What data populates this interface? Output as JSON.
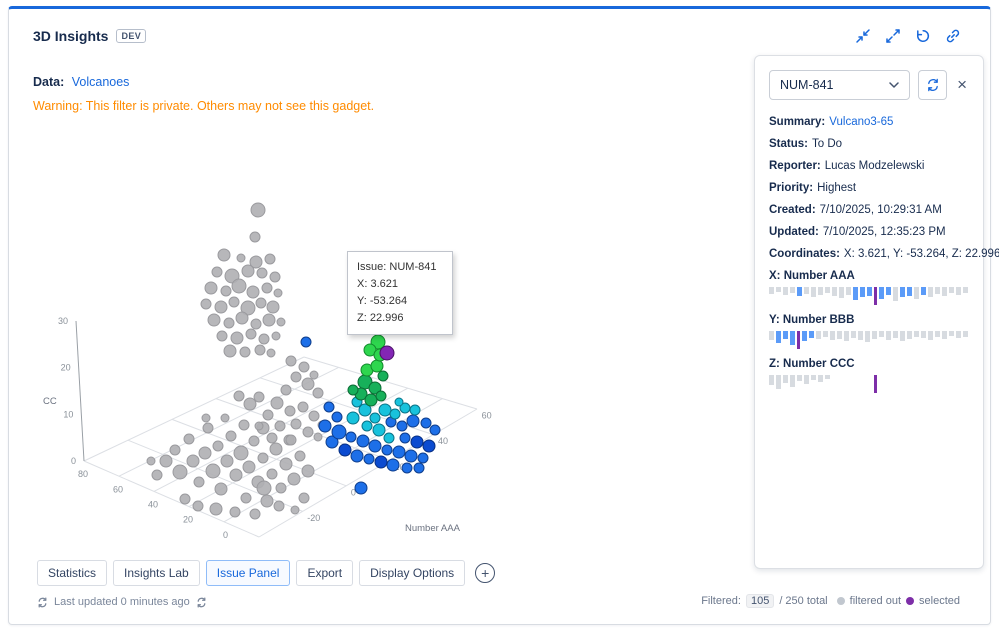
{
  "header": {
    "title": "3D Insights",
    "badge": "DEV",
    "icons": [
      "collapse",
      "expand",
      "undo",
      "link"
    ]
  },
  "info": {
    "data_label": "Data:",
    "data_value": "Volcanoes",
    "warning": "Warning: This filter is private. Others may not see this gadget."
  },
  "plot": {
    "tooltip": {
      "lines": [
        "Issue: NUM-841",
        "X: 3.621",
        "Y: -53.264",
        "Z: 22.996"
      ]
    },
    "axis": {
      "z_label": "CC",
      "x_label": "Number AAA",
      "z_ticks": [
        "30",
        "20",
        "10",
        "0"
      ],
      "left_ticks": [
        "80",
        "60",
        "40",
        "20",
        "0"
      ],
      "right_ticks": [
        "60",
        "40",
        "20",
        "0",
        "-20"
      ]
    },
    "palette": [
      {
        "fill": "#AFAFB2",
        "stroke": "#9A9A9E",
        "opacity": 0.9
      },
      {
        "fill": "#1D6FE8",
        "stroke": "#0F3E8C",
        "opacity": 1
      },
      {
        "fill": "#0B4BD0",
        "stroke": "#082F80",
        "opacity": 1
      },
      {
        "fill": "#18C2DC",
        "stroke": "#0B7286",
        "opacity": 1
      },
      {
        "fill": "#17B05A",
        "stroke": "#0B6B34",
        "opacity": 1
      },
      {
        "fill": "#2ED64E",
        "stroke": "#128A2C",
        "opacity": 1
      },
      {
        "fill": "#8326B5",
        "stroke": "#4A1266",
        "opacity": 1
      },
      {
        "fill": "#DCE66C",
        "stroke": "#70741F",
        "opacity": 1
      }
    ],
    "points": [
      [
        249,
        201,
        7,
        0
      ],
      [
        246,
        228,
        5,
        0
      ],
      [
        215,
        246,
        6,
        0
      ],
      [
        232,
        249,
        4,
        0
      ],
      [
        247,
        253,
        6,
        0
      ],
      [
        261,
        250,
        5,
        0
      ],
      [
        208,
        263,
        5,
        0
      ],
      [
        223,
        267,
        7,
        0
      ],
      [
        239,
        262,
        6,
        0
      ],
      [
        253,
        264,
        5,
        0
      ],
      [
        266,
        268,
        5,
        0
      ],
      [
        202,
        279,
        6,
        0
      ],
      [
        217,
        282,
        5,
        0
      ],
      [
        230,
        277,
        7,
        0
      ],
      [
        244,
        283,
        6,
        0
      ],
      [
        258,
        279,
        5,
        0
      ],
      [
        269,
        284,
        4,
        0
      ],
      [
        197,
        295,
        5,
        0
      ],
      [
        212,
        298,
        6,
        0
      ],
      [
        225,
        293,
        5,
        0
      ],
      [
        239,
        299,
        7,
        0
      ],
      [
        252,
        294,
        5,
        0
      ],
      [
        264,
        298,
        6,
        0
      ],
      [
        205,
        311,
        6,
        0
      ],
      [
        220,
        314,
        5,
        0
      ],
      [
        233,
        309,
        6,
        0
      ],
      [
        247,
        315,
        5,
        0
      ],
      [
        260,
        311,
        6,
        0
      ],
      [
        272,
        313,
        4,
        0
      ],
      [
        213,
        327,
        5,
        0
      ],
      [
        228,
        329,
        6,
        0
      ],
      [
        242,
        325,
        5,
        0
      ],
      [
        255,
        330,
        5,
        0
      ],
      [
        267,
        327,
        4,
        0
      ],
      [
        221,
        342,
        6,
        0
      ],
      [
        236,
        343,
        5,
        0
      ],
      [
        251,
        341,
        5,
        0
      ],
      [
        262,
        344,
        4,
        0
      ],
      [
        282,
        352,
        5,
        0
      ],
      [
        295,
        358,
        5,
        0
      ],
      [
        305,
        366,
        4,
        0
      ],
      [
        287,
        368,
        5,
        0
      ],
      [
        299,
        375,
        6,
        0
      ],
      [
        309,
        384,
        5,
        0
      ],
      [
        277,
        381,
        5,
        0
      ],
      [
        268,
        394,
        6,
        0
      ],
      [
        281,
        402,
        5,
        0
      ],
      [
        294,
        398,
        5,
        0
      ],
      [
        305,
        407,
        5,
        0
      ],
      [
        313,
        416,
        4,
        0
      ],
      [
        259,
        406,
        5,
        0
      ],
      [
        254,
        419,
        6,
        0
      ],
      [
        271,
        417,
        5,
        0
      ],
      [
        287,
        415,
        5,
        0
      ],
      [
        299,
        423,
        5,
        0
      ],
      [
        309,
        428,
        4,
        0
      ],
      [
        241,
        395,
        6,
        0
      ],
      [
        250,
        388,
        5,
        0
      ],
      [
        230,
        387,
        5,
        0
      ],
      [
        263,
        429,
        5,
        0
      ],
      [
        280,
        431,
        5,
        0
      ],
      [
        142,
        452,
        4,
        0
      ],
      [
        148,
        466,
        5,
        0
      ],
      [
        157,
        452,
        6,
        0
      ],
      [
        166,
        441,
        5,
        0
      ],
      [
        171,
        463,
        7,
        0
      ],
      [
        180,
        430,
        5,
        0
      ],
      [
        184,
        452,
        6,
        0
      ],
      [
        190,
        473,
        5,
        0
      ],
      [
        196,
        444,
        6,
        0
      ],
      [
        199,
        419,
        5,
        0
      ],
      [
        204,
        462,
        7,
        0
      ],
      [
        209,
        437,
        5,
        0
      ],
      [
        212,
        480,
        6,
        0
      ],
      [
        218,
        452,
        6,
        0
      ],
      [
        222,
        427,
        5,
        0
      ],
      [
        227,
        466,
        6,
        0
      ],
      [
        232,
        444,
        7,
        0
      ],
      [
        237,
        489,
        5,
        0
      ],
      [
        240,
        458,
        6,
        0
      ],
      [
        245,
        432,
        5,
        0
      ],
      [
        249,
        473,
        6,
        0
      ],
      [
        254,
        449,
        5,
        0
      ],
      [
        258,
        492,
        6,
        0
      ],
      [
        263,
        465,
        5,
        0
      ],
      [
        267,
        440,
        6,
        0
      ],
      [
        272,
        479,
        5,
        0
      ],
      [
        277,
        455,
        6,
        0
      ],
      [
        282,
        431,
        5,
        0
      ],
      [
        285,
        470,
        6,
        0
      ],
      [
        291,
        447,
        5,
        0
      ],
      [
        295,
        489,
        5,
        0
      ],
      [
        299,
        462,
        6,
        0
      ],
      [
        176,
        490,
        5,
        0
      ],
      [
        189,
        497,
        5,
        0
      ],
      [
        207,
        500,
        6,
        0
      ],
      [
        226,
        503,
        5,
        0
      ],
      [
        246,
        505,
        5,
        0
      ],
      [
        255,
        479,
        7,
        0
      ],
      [
        270,
        497,
        5,
        0
      ],
      [
        286,
        501,
        4,
        0
      ],
      [
        216,
        409,
        4,
        0
      ],
      [
        197,
        409,
        4,
        0
      ],
      [
        235,
        416,
        5,
        0
      ],
      [
        250,
        417,
        4,
        0
      ],
      [
        316,
        417,
        6,
        1
      ],
      [
        323,
        433,
        6,
        1
      ],
      [
        330,
        423,
        7,
        1
      ],
      [
        342,
        428,
        5,
        1
      ],
      [
        348,
        447,
        6,
        1
      ],
      [
        354,
        432,
        6,
        1
      ],
      [
        360,
        450,
        5,
        1
      ],
      [
        366,
        437,
        6,
        1
      ],
      [
        378,
        441,
        5,
        1
      ],
      [
        384,
        456,
        6,
        1
      ],
      [
        390,
        443,
        6,
        1
      ],
      [
        396,
        429,
        5,
        1
      ],
      [
        402,
        447,
        6,
        1
      ],
      [
        414,
        449,
        5,
        1
      ],
      [
        426,
        421,
        5,
        1
      ],
      [
        417,
        414,
        5,
        1
      ],
      [
        404,
        412,
        6,
        1
      ],
      [
        393,
        417,
        5,
        1
      ],
      [
        382,
        413,
        5,
        1
      ],
      [
        352,
        479,
        6,
        1
      ],
      [
        398,
        459,
        5,
        1
      ],
      [
        410,
        459,
        5,
        1
      ],
      [
        328,
        408,
        5,
        1
      ],
      [
        320,
        398,
        5,
        1
      ],
      [
        297,
        333,
        5,
        1
      ],
      [
        336,
        441,
        6,
        2
      ],
      [
        372,
        453,
        6,
        2
      ],
      [
        408,
        433,
        6,
        2
      ],
      [
        420,
        437,
        6,
        2
      ],
      [
        344,
        409,
        6,
        3
      ],
      [
        356,
        401,
        6,
        3
      ],
      [
        366,
        409,
        5,
        3
      ],
      [
        376,
        401,
        6,
        3
      ],
      [
        386,
        405,
        5,
        3
      ],
      [
        396,
        399,
        5,
        3
      ],
      [
        358,
        417,
        5,
        3
      ],
      [
        370,
        421,
        6,
        3
      ],
      [
        348,
        393,
        5,
        3
      ],
      [
        380,
        429,
        5,
        3
      ],
      [
        406,
        401,
        5,
        3
      ],
      [
        390,
        393,
        4,
        3
      ],
      [
        356,
        373,
        7,
        4
      ],
      [
        366,
        379,
        6,
        4
      ],
      [
        352,
        385,
        6,
        4
      ],
      [
        362,
        391,
        6,
        4
      ],
      [
        372,
        387,
        5,
        4
      ],
      [
        344,
        381,
        5,
        4
      ],
      [
        374,
        367,
        5,
        4
      ],
      [
        358,
        361,
        6,
        5
      ],
      [
        368,
        357,
        6,
        5
      ],
      [
        369,
        333,
        7,
        5
      ],
      [
        361,
        341,
        6,
        5
      ],
      [
        371,
        346,
        6,
        5
      ],
      [
        378,
        344,
        7,
        6
      ],
      [
        366,
        317,
        8,
        7
      ]
    ]
  },
  "tabs": {
    "items": [
      {
        "label": "Statistics",
        "active": false
      },
      {
        "label": "Insights Lab",
        "active": false
      },
      {
        "label": "Issue Panel",
        "active": true
      },
      {
        "label": "Export",
        "active": false
      },
      {
        "label": "Display Options",
        "active": false
      }
    ],
    "add_label": "+"
  },
  "footer": {
    "last_updated": "Last updated 0 minutes ago",
    "filtered_label": "Filtered:",
    "filtered_count": "105",
    "total_label": "/ 250 total",
    "legend": [
      {
        "label": "filtered out",
        "color": "#C1C7CF"
      },
      {
        "label": "selected",
        "color": "#7D2EA8"
      }
    ]
  },
  "panel": {
    "select_value": "NUM-841",
    "close_label": "×",
    "fields": [
      {
        "label": "Summary:",
        "value": "Vulcano3-65",
        "link": true
      },
      {
        "label": "Status:",
        "value": "To Do",
        "link": false
      },
      {
        "label": "Reporter:",
        "value": "Lucas Modzelewski",
        "link": false
      },
      {
        "label": "Priority:",
        "value": "Highest",
        "link": false
      },
      {
        "label": "Created:",
        "value": "7/10/2025, 10:29:31 AM",
        "link": false
      },
      {
        "label": "Updated:",
        "value": "7/10/2025, 12:35:23 PM",
        "link": false
      },
      {
        "label": "Coordinates:",
        "value": "X: 3.621, Y: -53.264, Z: 22.996",
        "link": false
      }
    ],
    "histograms": [
      {
        "label": "X: Number AAA",
        "bars": [
          [
            7,
            "g"
          ],
          [
            5,
            "g"
          ],
          [
            8,
            "g"
          ],
          [
            6,
            "g"
          ],
          [
            9,
            "b"
          ],
          [
            7,
            "g"
          ],
          [
            10,
            "g"
          ],
          [
            8,
            "g"
          ],
          [
            6,
            "g"
          ],
          [
            9,
            "g"
          ],
          [
            11,
            "g"
          ],
          [
            8,
            "g"
          ],
          [
            13,
            "b"
          ],
          [
            10,
            "b"
          ],
          [
            9,
            "b"
          ],
          [
            18,
            "p"
          ],
          [
            12,
            "b"
          ],
          [
            8,
            "b"
          ],
          [
            14,
            "g"
          ],
          [
            10,
            "b"
          ],
          [
            9,
            "b"
          ],
          [
            12,
            "g"
          ],
          [
            8,
            "b"
          ],
          [
            10,
            "g"
          ],
          [
            7,
            "g"
          ],
          [
            9,
            "g"
          ],
          [
            6,
            "g"
          ],
          [
            8,
            "g"
          ],
          [
            6,
            "g"
          ]
        ]
      },
      {
        "label": "Y: Number BBB",
        "bars": [
          [
            9,
            "g"
          ],
          [
            12,
            "b"
          ],
          [
            8,
            "b"
          ],
          [
            14,
            "b"
          ],
          [
            18,
            "p"
          ],
          [
            10,
            "b"
          ],
          [
            7,
            "b"
          ],
          [
            8,
            "g"
          ],
          [
            6,
            "g"
          ],
          [
            9,
            "g"
          ],
          [
            8,
            "g"
          ],
          [
            10,
            "g"
          ],
          [
            7,
            "g"
          ],
          [
            9,
            "g"
          ],
          [
            11,
            "g"
          ],
          [
            8,
            "g"
          ],
          [
            6,
            "g"
          ],
          [
            9,
            "g"
          ],
          [
            7,
            "g"
          ],
          [
            10,
            "g"
          ],
          [
            8,
            "g"
          ],
          [
            6,
            "g"
          ],
          [
            7,
            "g"
          ],
          [
            9,
            "g"
          ],
          [
            6,
            "g"
          ],
          [
            8,
            "g"
          ],
          [
            5,
            "g"
          ],
          [
            7,
            "g"
          ],
          [
            6,
            "g"
          ]
        ]
      },
      {
        "label": "Z: Number CCC",
        "bars": [
          [
            10,
            "g"
          ],
          [
            14,
            "g"
          ],
          [
            8,
            "g"
          ],
          [
            12,
            "g"
          ],
          [
            6,
            "g"
          ],
          [
            9,
            "g"
          ],
          [
            5,
            "g"
          ],
          [
            7,
            "g"
          ],
          [
            4,
            "g"
          ],
          [
            0,
            "g"
          ],
          [
            0,
            "g"
          ],
          [
            0,
            "g"
          ],
          [
            0,
            "g"
          ],
          [
            0,
            "g"
          ],
          [
            0,
            "g"
          ],
          [
            18,
            "p"
          ],
          [
            0,
            "g"
          ],
          [
            0,
            "g"
          ],
          [
            0,
            "g"
          ],
          [
            0,
            "g"
          ],
          [
            0,
            "g"
          ],
          [
            0,
            "g"
          ],
          [
            0,
            "g"
          ],
          [
            0,
            "g"
          ],
          [
            0,
            "g"
          ],
          [
            0,
            "g"
          ],
          [
            0,
            "g"
          ],
          [
            0,
            "g"
          ],
          [
            0,
            "g"
          ]
        ]
      }
    ]
  }
}
